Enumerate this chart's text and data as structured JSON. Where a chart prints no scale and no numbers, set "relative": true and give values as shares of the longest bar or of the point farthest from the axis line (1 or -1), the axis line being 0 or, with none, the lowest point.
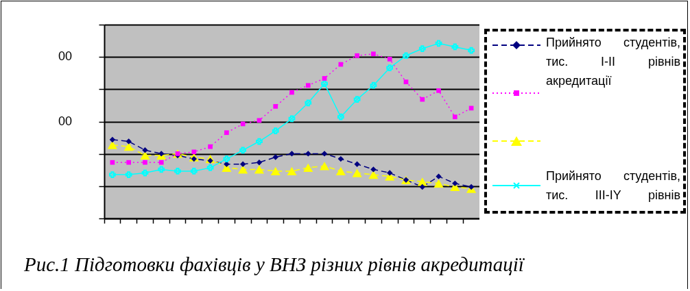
{
  "chart_data": {
    "type": "line",
    "relative": true,
    "categories": [
      null,
      null,
      null,
      null,
      null,
      null,
      null,
      null,
      null,
      null,
      null,
      null,
      null,
      null,
      null,
      null,
      null,
      null,
      null,
      null,
      null,
      null,
      null
    ],
    "series": [
      {
        "name": "Прийнято студентів, тис. I-II рівнів акредитації",
        "color": "#000080",
        "marker": "diamond",
        "line_style": "dashed",
        "values": [
          0.45,
          0.44,
          0.39,
          0.37,
          0.36,
          0.34,
          0.33,
          0.31,
          0.31,
          0.32,
          0.35,
          0.37,
          0.37,
          0.37,
          0.34,
          0.31,
          0.28,
          0.26,
          0.22,
          0.18,
          0.24,
          0.2,
          0.18
        ]
      },
      {
        "color": "#ff00ff",
        "marker": "square",
        "line_style": "dotted",
        "values": [
          0.32,
          0.32,
          0.32,
          0.32,
          0.37,
          0.38,
          0.41,
          0.49,
          0.54,
          0.56,
          0.64,
          0.72,
          0.76,
          0.8,
          0.88,
          0.93,
          0.94,
          0.91,
          0.78,
          0.68,
          0.73,
          0.58,
          0.63
        ]
      },
      {
        "color": "#ffff00",
        "marker": "triangle",
        "line_style": "dashed",
        "values": [
          0.42,
          0.41,
          0.36,
          0.36,
          0.37,
          0.35,
          0.34,
          0.29,
          0.28,
          0.28,
          0.27,
          0.27,
          0.29,
          0.3,
          0.27,
          0.26,
          0.25,
          0.24,
          0.22,
          0.21,
          0.2,
          0.18,
          0.17
        ]
      },
      {
        "name": "Прийнято студентів, тис. III-IY рівнів",
        "color": "#00ffff",
        "marker": "cross",
        "line_style": "solid",
        "values": [
          0.25,
          0.25,
          0.26,
          0.28,
          0.27,
          0.27,
          0.29,
          0.34,
          0.39,
          0.44,
          0.5,
          0.57,
          0.66,
          0.77,
          0.58,
          0.68,
          0.76,
          0.86,
          0.93,
          0.97,
          1,
          0.98,
          0.96
        ]
      }
    ],
    "grid": "y",
    "legend": "right",
    "annotations": [
      "00",
      "00",
      "Рис.1 Підготовки фахівців у ВНЗ різних рівнів акредитації"
    ]
  }
}
